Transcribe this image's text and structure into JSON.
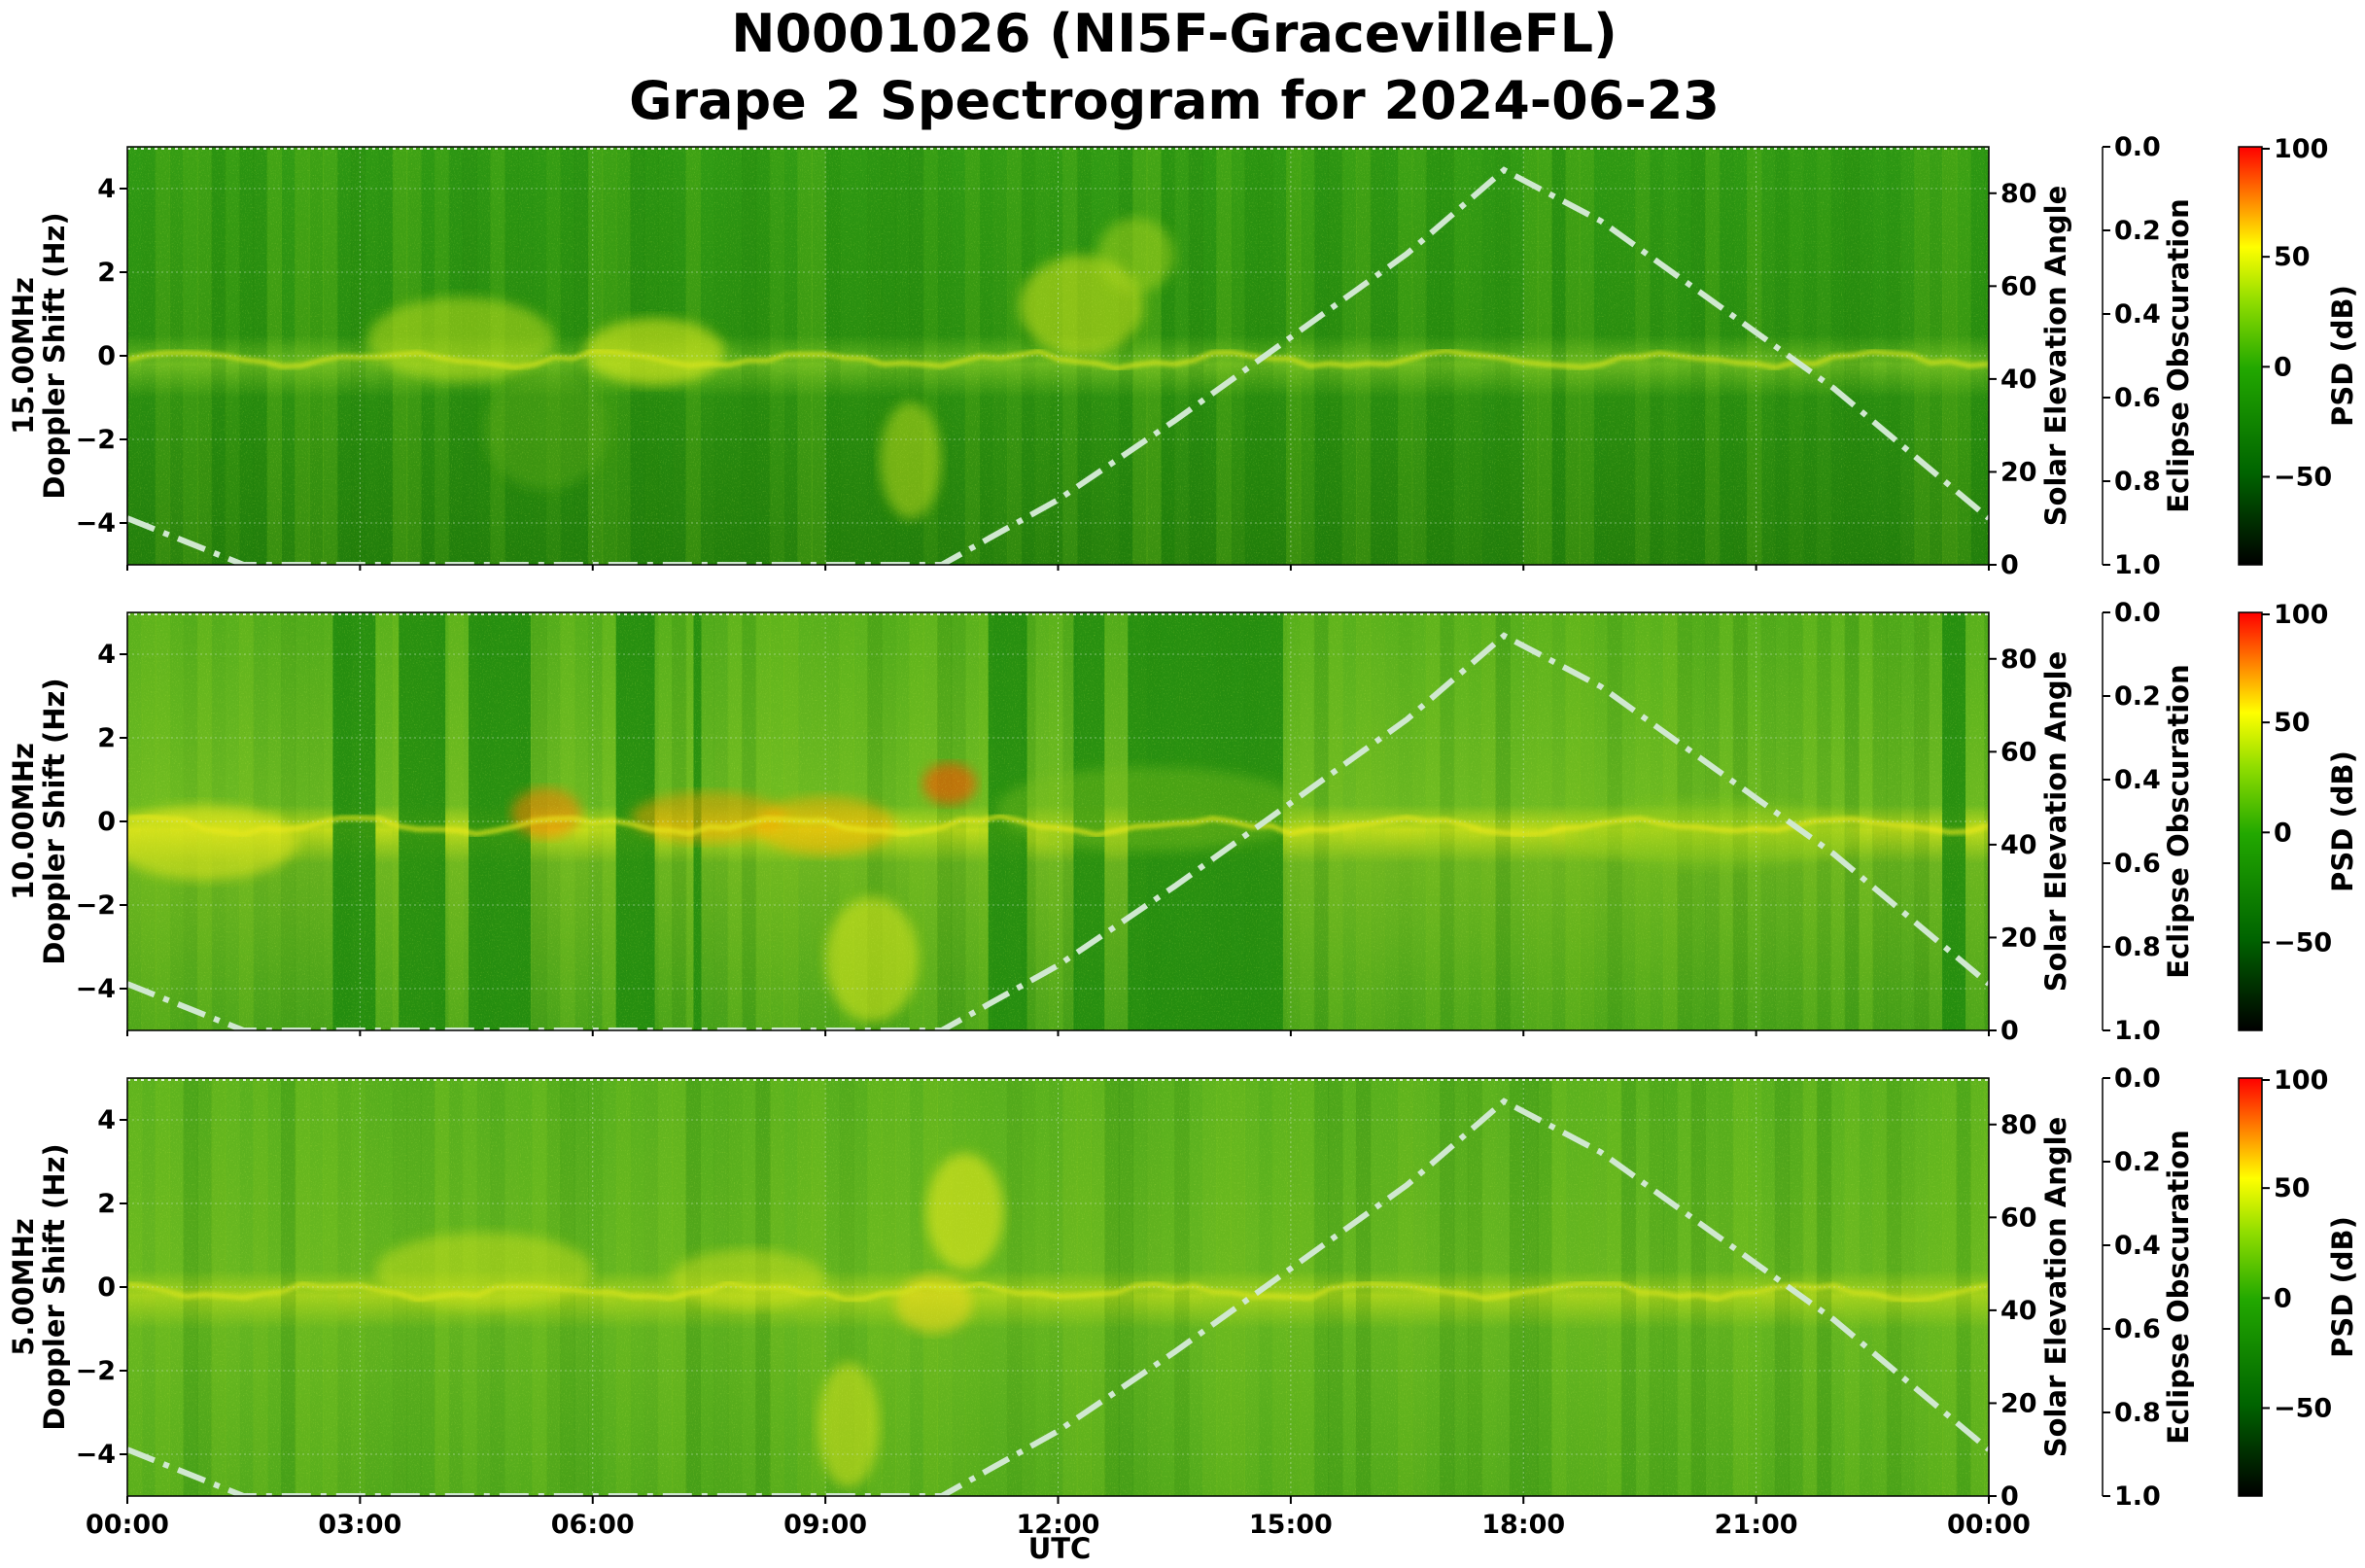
{
  "chart_data": {
    "type": "heatmap",
    "title": "N0001026 (NI5F-GracevilleFL)",
    "subtitle": "Grape 2 Spectrogram for 2024-06-23",
    "xlabel": "UTC",
    "x_ticks": [
      "00:00",
      "03:00",
      "06:00",
      "09:00",
      "12:00",
      "15:00",
      "18:00",
      "21:00",
      "00:00"
    ],
    "xlim_hours": [
      0,
      24
    ],
    "grid": true,
    "panels": [
      {
        "freq": "15.00MHz",
        "ylabel": "Doppler Shift (Hz)",
        "ylim": [
          -5,
          5
        ],
        "y_ticks": [
          -4,
          -2,
          0,
          2,
          4
        ]
      },
      {
        "freq": "10.00MHz",
        "ylabel": "Doppler Shift (Hz)",
        "ylim": [
          -5,
          5
        ],
        "y_ticks": [
          -4,
          -2,
          0,
          2,
          4
        ]
      },
      {
        "freq": "5.00MHz",
        "ylabel": "Doppler Shift (Hz)",
        "ylim": [
          -5,
          5
        ],
        "y_ticks": [
          -4,
          -2,
          0,
          2,
          4
        ]
      }
    ],
    "solar_axis": {
      "label": "Solar Elevation Angle",
      "ylim": [
        0,
        90
      ],
      "ticks": [
        0,
        20,
        40,
        60,
        80
      ]
    },
    "eclipse_axis": {
      "label": "Eclipse Obscuration",
      "ylim": [
        1.0,
        0.0
      ],
      "ticks": [
        "0.0",
        "0.2",
        "0.4",
        "0.6",
        "0.8",
        "1.0"
      ]
    },
    "colorbar": {
      "label": "PSD (dB)",
      "range": [
        -90,
        100
      ],
      "ticks": [
        "100",
        "50",
        "0",
        "−50"
      ],
      "colors": [
        "#000000",
        "#006600",
        "#22aa00",
        "#88dd00",
        "#ffff00",
        "#ff0000"
      ]
    },
    "solar_elevation_series": {
      "x_hours": [
        0,
        1.5,
        3,
        4.5,
        6,
        7.5,
        9,
        10.5,
        12,
        13.5,
        15,
        16.5,
        17.75,
        19,
        20.5,
        22,
        24
      ],
      "values": [
        10,
        0,
        0,
        0,
        0,
        0,
        0,
        0,
        14,
        31,
        49,
        67,
        85,
        74,
        56,
        38,
        10
      ]
    },
    "trace_color": "#d0e8d0"
  }
}
